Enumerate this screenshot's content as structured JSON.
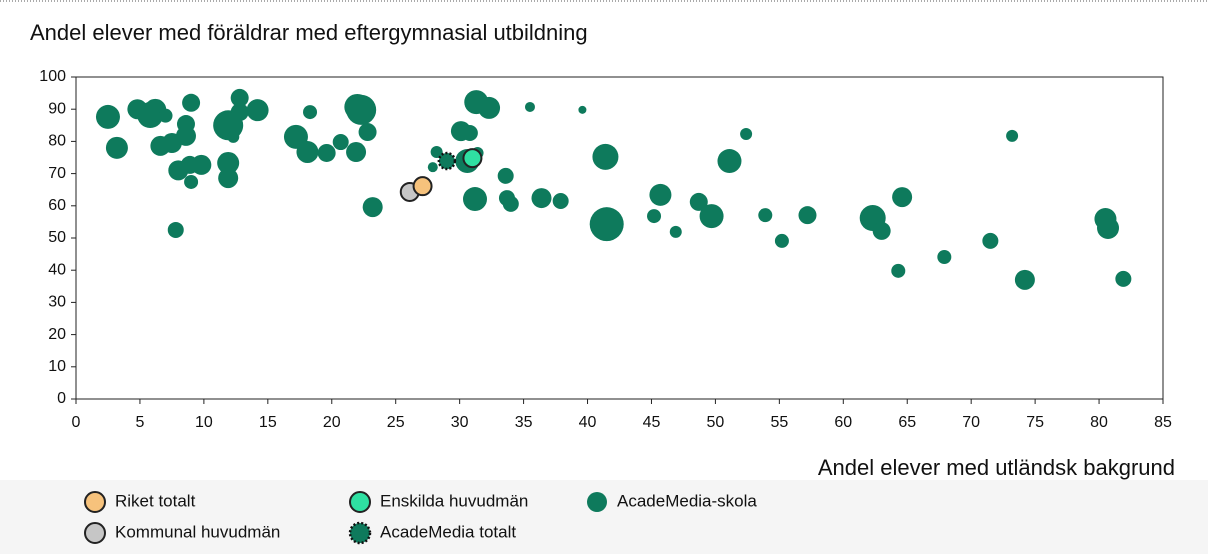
{
  "chart_data": {
    "type": "scatter",
    "title": "Andel elever med föräldrar med eftergymnasial utbildning",
    "x_label": "Andel elever med utländsk bakgrund",
    "xlim": [
      0,
      85
    ],
    "ylim": [
      0,
      100
    ],
    "xticks": [
      0,
      5,
      10,
      15,
      20,
      25,
      30,
      35,
      40,
      45,
      50,
      55,
      60,
      65,
      70,
      75,
      80,
      85
    ],
    "yticks": [
      0,
      10,
      20,
      30,
      40,
      50,
      60,
      70,
      80,
      90,
      100
    ],
    "grid": false,
    "series": [
      {
        "name": "AcadeMedia-skola",
        "color": "#0e7a5c",
        "border": "none",
        "x": [
          2.5,
          3.2,
          4.8,
          5.8,
          6.2,
          7,
          6.6,
          7.5,
          7.8,
          8,
          8.6,
          8.6,
          8.9,
          9,
          9,
          9.8,
          11.9,
          11.9,
          11.9,
          12.3,
          12.8,
          12.8,
          14.2,
          17.2,
          18.1,
          18.3,
          19.6,
          20.7,
          22,
          22.3,
          21.9,
          22.8,
          23.2,
          28.2,
          27.9,
          30.1,
          30.8,
          30.6,
          31.3,
          32.3,
          31.4,
          31.2,
          33.6,
          33.7,
          34,
          35.5,
          36.4,
          37.9,
          39.6,
          41.4,
          41.5,
          45.2,
          45.7,
          46.9,
          48.7,
          49.7,
          51.1,
          52.4,
          53.9,
          55.2,
          57.2,
          62.3,
          63,
          64.3,
          64.6,
          67.9,
          71.5,
          73.2,
          74.2,
          80.5,
          80.7,
          81.9
        ],
        "values": [
          87.6,
          78,
          90,
          88.2,
          89.8,
          88,
          78.6,
          79.5,
          52.5,
          71,
          85.4,
          81.7,
          72.7,
          92,
          67.4,
          72.7,
          85,
          73.3,
          68.6,
          81.4,
          93.5,
          89.1,
          89.7,
          81.4,
          76.7,
          89.1,
          76.4,
          79.8,
          90.7,
          89.8,
          76.7,
          82.9,
          59.6,
          76.7,
          72,
          83.2,
          82.6,
          73.9,
          92.2,
          90.4,
          76.4,
          62.1,
          69.3,
          62.4,
          60.6,
          90.7,
          62.4,
          61.5,
          89.8,
          75.2,
          54.3,
          56.8,
          63.4,
          51.9,
          61.2,
          56.8,
          73.9,
          82.3,
          57.1,
          49.1,
          57.1,
          56.2,
          52.2,
          39.8,
          62.7,
          44.1,
          49.1,
          81.7,
          37,
          55.9,
          53.1,
          37.3
        ],
        "sizes": [
          12,
          11,
          10,
          13,
          11,
          7,
          10,
          10,
          8,
          10,
          9,
          10,
          9,
          9,
          7,
          10,
          15,
          11,
          10,
          6,
          9,
          9,
          11,
          12,
          11,
          7,
          9,
          8,
          13,
          15,
          10,
          9,
          10,
          6,
          5,
          10,
          8,
          12,
          12,
          11,
          6,
          12,
          8,
          8,
          8,
          5,
          10,
          8,
          4,
          13,
          17,
          7,
          11,
          6,
          9,
          12,
          12,
          6,
          7,
          7,
          9,
          13,
          9,
          7,
          10,
          7,
          8,
          6,
          10,
          11,
          11,
          8
        ]
      },
      {
        "name": "Kommunal huvudmän",
        "color": "#c6c6c6",
        "border": "solid",
        "x": [
          26.1
        ],
        "values": [
          64.3
        ],
        "sizes": [
          9
        ]
      },
      {
        "name": "Riket totalt",
        "color": "#f6c27c",
        "border": "solid",
        "x": [
          27.1
        ],
        "values": [
          66.1
        ],
        "sizes": [
          9
        ]
      },
      {
        "name": "AcadeMedia totalt",
        "color": "#0e7a5c",
        "border": "dotted",
        "x": [
          29
        ],
        "values": [
          73.9
        ],
        "sizes": [
          8
        ]
      },
      {
        "name": "Enskilda huvudmän",
        "color": "#2fe0a2",
        "border": "solid",
        "x": [
          31
        ],
        "values": [
          74.8
        ],
        "sizes": [
          9
        ]
      }
    ]
  }
}
